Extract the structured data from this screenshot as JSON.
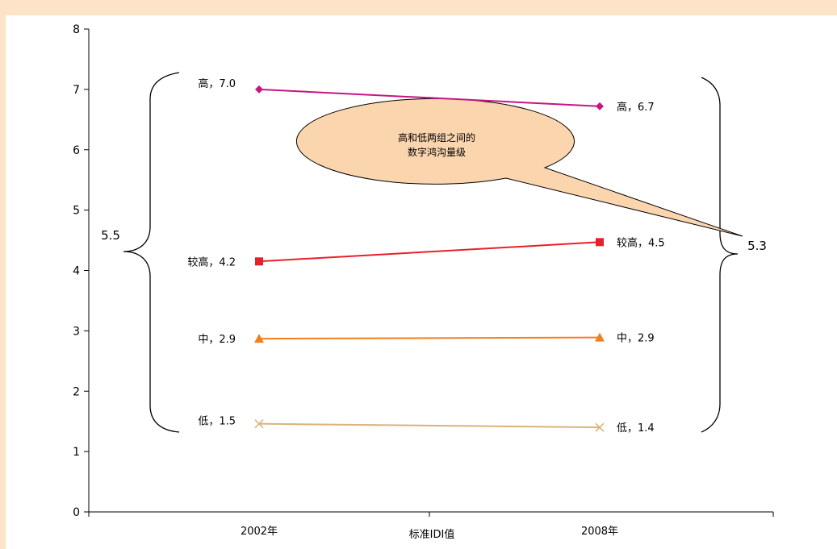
{
  "chart_data": {
    "type": "line",
    "categories": [
      "2002年",
      "2008年"
    ],
    "xlabel": "标准IDI值",
    "ylabel": "",
    "title": "",
    "ylim": [
      0,
      8
    ],
    "yticks": [
      "0",
      "1",
      "2",
      "3",
      "4",
      "5",
      "6",
      "7",
      "8"
    ],
    "grid": false,
    "legend": "none",
    "series": [
      {
        "name": "高",
        "values": [
          7.0,
          6.72
        ],
        "labels": [
          "高，7.0",
          "高，6.7"
        ],
        "color": "#c71585",
        "marker": "diamond"
      },
      {
        "name": "较高",
        "values": [
          4.15,
          4.47
        ],
        "labels": [
          "较高，4.2",
          "较高，4.5"
        ],
        "color": "#e8202a",
        "marker": "square"
      },
      {
        "name": "中",
        "values": [
          2.87,
          2.89
        ],
        "labels": [
          "中，2.9",
          "中，2.9"
        ],
        "color": "#f07f1e",
        "marker": "triangle"
      },
      {
        "name": "低",
        "values": [
          1.46,
          1.4
        ],
        "labels": [
          "低，1.5",
          "低，1.4"
        ],
        "color": "#d9b47a",
        "marker": "x"
      }
    ],
    "annotations": {
      "callout_line1": "高和低两组之间的",
      "callout_line2": "数字鸿沟量级",
      "gap_2002": "5.5",
      "gap_2008": "5.3",
      "callout_fill": "#fbd5ae"
    }
  }
}
